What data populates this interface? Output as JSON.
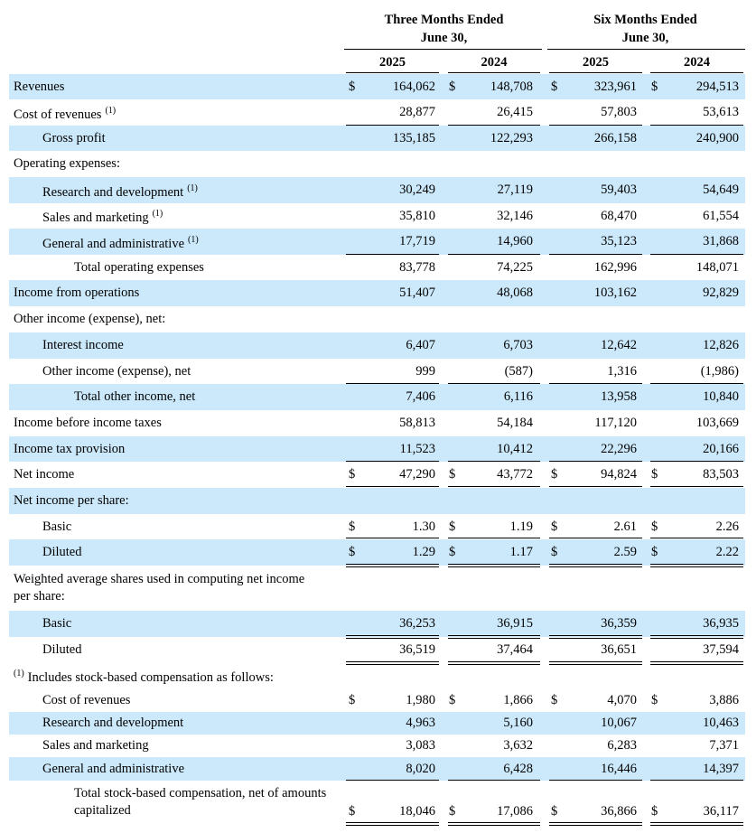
{
  "header": {
    "group1": "Three Months Ended",
    "group1_sub": "June 30,",
    "group2": "Six Months Ended",
    "group2_sub": "June 30,",
    "years": [
      "2025",
      "2024",
      "2025",
      "2024"
    ]
  },
  "rows": [
    {
      "label": "Revenues",
      "currency": "$",
      "values": [
        "164,062",
        "148,708",
        "323,961",
        "294,513"
      ]
    },
    {
      "label": "Cost of revenues",
      "note": "(1)",
      "values": [
        "28,877",
        "26,415",
        "57,803",
        "53,613"
      ]
    },
    {
      "label": "Gross profit",
      "values": [
        "135,185",
        "122,293",
        "266,158",
        "240,900"
      ]
    },
    {
      "label": "Operating expenses:"
    },
    {
      "label": "Research and development",
      "note": "(1)",
      "values": [
        "30,249",
        "27,119",
        "59,403",
        "54,649"
      ]
    },
    {
      "label": "Sales and marketing",
      "note": "(1)",
      "values": [
        "35,810",
        "32,146",
        "68,470",
        "61,554"
      ]
    },
    {
      "label": "General and administrative",
      "note": "(1)",
      "values": [
        "17,719",
        "14,960",
        "35,123",
        "31,868"
      ]
    },
    {
      "label": "Total operating expenses",
      "values": [
        "83,778",
        "74,225",
        "162,996",
        "148,071"
      ]
    },
    {
      "label": "Income from operations",
      "values": [
        "51,407",
        "48,068",
        "103,162",
        "92,829"
      ]
    },
    {
      "label": "Other income (expense), net:"
    },
    {
      "label": "Interest income",
      "values": [
        "6,407",
        "6,703",
        "12,642",
        "12,826"
      ]
    },
    {
      "label": "Other income (expense), net",
      "values": [
        "999",
        "(587)",
        "1,316",
        "(1,986)"
      ]
    },
    {
      "label": "Total other income, net",
      "values": [
        "7,406",
        "6,116",
        "13,958",
        "10,840"
      ]
    },
    {
      "label": "Income before income taxes",
      "values": [
        "58,813",
        "54,184",
        "117,120",
        "103,669"
      ]
    },
    {
      "label": "Income tax provision",
      "values": [
        "11,523",
        "10,412",
        "22,296",
        "20,166"
      ]
    },
    {
      "label": "Net income",
      "currency": "$",
      "values": [
        "47,290",
        "43,772",
        "94,824",
        "83,503"
      ]
    },
    {
      "label": "Net income per share:"
    },
    {
      "label": "Basic",
      "currency": "$",
      "values": [
        "1.30",
        "1.19",
        "2.61",
        "2.26"
      ]
    },
    {
      "label": "Diluted",
      "currency": "$",
      "values": [
        "1.29",
        "1.17",
        "2.59",
        "2.22"
      ]
    },
    {
      "label": "Weighted average shares used in computing net income per share:"
    },
    {
      "label": "Basic",
      "values": [
        "36,253",
        "36,915",
        "36,359",
        "36,935"
      ]
    },
    {
      "label": "Diluted",
      "values": [
        "36,519",
        "37,464",
        "36,651",
        "37,594"
      ]
    },
    {
      "label": "Includes stock-based compensation as follows:",
      "note": "(1)"
    },
    {
      "label": "Cost of revenues",
      "currency": "$",
      "values": [
        "1,980",
        "1,866",
        "4,070",
        "3,886"
      ]
    },
    {
      "label": "Research and development",
      "values": [
        "4,963",
        "5,160",
        "10,067",
        "10,463"
      ]
    },
    {
      "label": "Sales and marketing",
      "values": [
        "3,083",
        "3,632",
        "6,283",
        "7,371"
      ]
    },
    {
      "label": "General and administrative",
      "values": [
        "8,020",
        "6,428",
        "16,446",
        "14,397"
      ]
    },
    {
      "label": "Total stock-based compensation, net of amounts capitalized",
      "currency": "$",
      "values": [
        "18,046",
        "17,086",
        "36,866",
        "36,117"
      ]
    }
  ]
}
